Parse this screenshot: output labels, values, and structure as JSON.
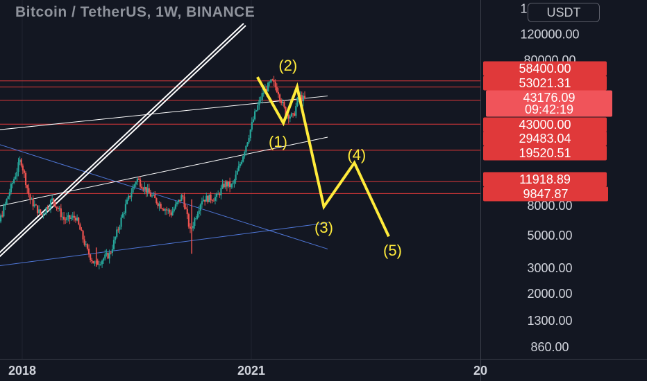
{
  "header": {
    "title": "Bitcoin / TetherUS, 1W, BINANCE",
    "currency_button": "USDT"
  },
  "colors": {
    "background": "#131722",
    "red_level": "#e0393a",
    "label_red": "#e0393a",
    "label_red_light": "#f0545a",
    "yellow": "#ffeb3b",
    "white_line": "#ffffff",
    "blue_line": "#4f77d8",
    "candle_up": "#26a69a",
    "candle_down": "#ef5350",
    "axis_text": "#d1d4dc"
  },
  "chart_data": {
    "type": "candlestick",
    "title": "Bitcoin / TetherUS, 1W, BINANCE",
    "y_scale": "log",
    "y_axis_ticks": [
      "180000.00",
      "120000.00",
      "80000.00",
      "8000.00",
      "5000.00",
      "3000.00",
      "2000.00",
      "1300.00",
      "860.00"
    ],
    "x_axis_ticks": [
      "2018",
      "2021",
      "20"
    ],
    "price_labels": [
      {
        "text": "58400.00",
        "style": "red"
      },
      {
        "text": "53021.31",
        "style": "red"
      },
      {
        "text": "43176.09",
        "style": "current"
      },
      {
        "text": "09:42:19",
        "style": "current"
      },
      {
        "text": "43000.00",
        "style": "red"
      },
      {
        "text": "29483.04",
        "style": "red"
      },
      {
        "text": "19520.51",
        "style": "red"
      },
      {
        "text": "11918.89",
        "style": "red"
      },
      {
        "text": "9847.87",
        "style": "red"
      }
    ],
    "horizontal_levels": [
      58400,
      53021.31,
      43000,
      29483.04,
      19520.51,
      11918.89,
      9847.87
    ],
    "wave_labels": [
      "(1)",
      "(2)",
      "(3)",
      "(4)",
      "(5)"
    ],
    "wave_path_prices": [
      62000,
      30000,
      53000,
      8000,
      16000,
      5000
    ],
    "price_series_weekly_approx": [
      {
        "date": "2017-12",
        "price": 19000
      },
      {
        "date": "2018-12",
        "price": 3200
      },
      {
        "date": "2019-06",
        "price": 13000
      },
      {
        "date": "2020-03",
        "price": 4000
      },
      {
        "date": "2021-04",
        "price": 64000
      },
      {
        "date": "2021-07",
        "price": 30000
      },
      {
        "date": "2021-09",
        "price": 43176.09
      }
    ]
  }
}
